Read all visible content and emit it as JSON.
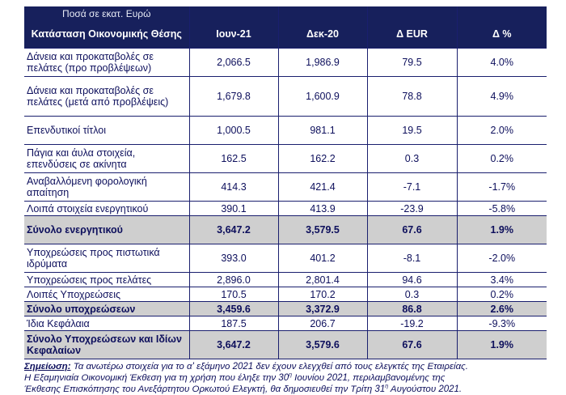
{
  "header": {
    "units": "Ποσά σε εκατ. Ευρώ",
    "col_label": "Κατάσταση Οικονομικής Θέσης",
    "cols": [
      "Ιουν-21",
      "Δεκ-20",
      "Δ EUR",
      "Δ %"
    ]
  },
  "rows": [
    {
      "label": "Δάνεια και προκαταβολές σε πελάτες (προ προβλέψεων)",
      "v": [
        "2,066.5",
        "1,986.9",
        "79.5",
        "4.0%"
      ]
    },
    {
      "label": "Δάνεια και προκαταβολές σε πελάτες (μετά από προβλέψεις)",
      "v": [
        "1,679.8",
        "1,600.9",
        "78.8",
        "4.9%"
      ]
    },
    {
      "label": "Επενδυτικοί τίτλοι",
      "v": [
        "1,000.5",
        "981.1",
        "19.5",
        "2.0%"
      ]
    },
    {
      "label": "Πάγια και άυλα στοιχεία, επενδύσεις σε ακίνητα",
      "v": [
        "162.5",
        "162.2",
        "0.3",
        "0.2%"
      ]
    },
    {
      "label": "Αναβαλλόμενη φορολογική απαίτηση",
      "v": [
        "414.3",
        "421.4",
        "-7.1",
        "-1.7%"
      ]
    },
    {
      "label": "Λοιπά στοιχεία ενεργητικού",
      "v": [
        "390.1",
        "413.9",
        "-23.9",
        "-5.8%"
      ]
    },
    {
      "label": "Σύνολο ενεργητικού",
      "v": [
        "3,647.2",
        "3,579.5",
        "67.6",
        "1.9%"
      ]
    },
    {
      "label": "Υποχρεώσεις προς πιστωτικά ιδρύματα",
      "v": [
        "393.0",
        "401.2",
        "-8.1",
        "-2.0%"
      ]
    },
    {
      "label": "Υποχρεώσεις προς πελάτες",
      "v": [
        "2,896.0",
        "2,801.4",
        "94.6",
        "3.4%"
      ]
    },
    {
      "label": "Λοιπές Υποχρεώσεις",
      "v": [
        "170.5",
        "170.2",
        "0.3",
        "0.2%"
      ]
    },
    {
      "label": "Σύνολο υποχρεώσεων",
      "v": [
        "3,459.6",
        "3,372.9",
        "86.8",
        "2.6%"
      ]
    },
    {
      "label": "Ίδια Κεφάλαια",
      "v": [
        "187.5",
        "206.7",
        "-19.2",
        "-9.3%"
      ]
    },
    {
      "label": "Σύνολο Υποχρεώσεων και Ιδίων Κεφαλαίων",
      "v": [
        "3,647.2",
        "3,579.6",
        "67.6",
        "1.9%"
      ]
    }
  ],
  "note": {
    "lead": "Σημείωση:",
    "line1": " Τα ανωτέρω στοιχεία για το α' εξάμηνο 2021 δεν έχουν ελεγχθεί από τους ελεγκτές της Εταιρείας.",
    "line2a": "Η Εξαμηνιαία Οικονομική Έκθεση για τη χρήση που έληξε την 30",
    "sup": "η",
    "line2b": " Ιουνίου 2021, περιλαμβανομένης της",
    "line3a": "Έκθεσης Επισκόπησης του Ανεξάρτητου Ορκωτού Ελεγκτή, θα δημοσιευθεί την Τρίτη 31",
    "line3b": " Αυγούστου 2021."
  }
}
